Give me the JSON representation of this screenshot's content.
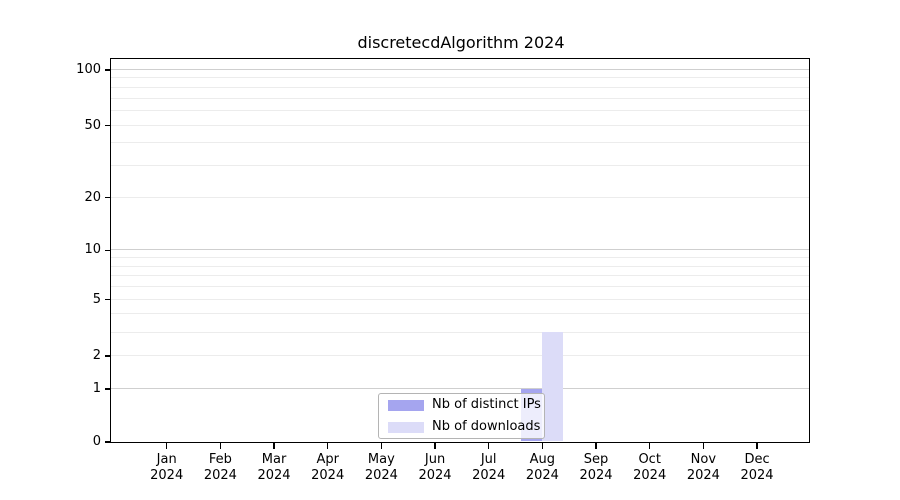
{
  "chart_data": {
    "type": "bar",
    "title": "discretecdAlgorithm 2024",
    "x_axis": {
      "months": [
        "Jan",
        "Feb",
        "Mar",
        "Apr",
        "May",
        "Jun",
        "Jul",
        "Aug",
        "Sep",
        "Oct",
        "Nov",
        "Dec"
      ],
      "year_label": "2024"
    },
    "y_axis": {
      "scale": "log1p",
      "tick_values": [
        0,
        1,
        2,
        5,
        10,
        20,
        50,
        100
      ],
      "tick_labels": [
        "0",
        "1",
        "2",
        "5",
        "10",
        "20",
        "50",
        "100"
      ],
      "range": [
        0,
        115
      ],
      "major_grid_values": [
        1,
        10,
        100
      ]
    },
    "series": [
      {
        "name": "Nb of distinct IPs",
        "color": "#a5a5ef",
        "values": [
          0,
          0,
          0,
          0,
          0,
          0,
          0,
          1,
          0,
          0,
          0,
          0
        ]
      },
      {
        "name": "Nb of downloads",
        "color": "#dcdcf8",
        "values": [
          0,
          0,
          0,
          0,
          0,
          0,
          0,
          3,
          0,
          0,
          0,
          0
        ]
      }
    ],
    "legend": {
      "position": "bottom-center",
      "entries": [
        "Nb of distinct IPs",
        "Nb of downloads"
      ]
    },
    "grid": "horizontal"
  },
  "colors": {
    "axis": "#000000",
    "grid_minor": "#ececec",
    "grid_major": "#cfcfcf",
    "legend_border": "#b4b4b4",
    "background": "#ffffff"
  }
}
